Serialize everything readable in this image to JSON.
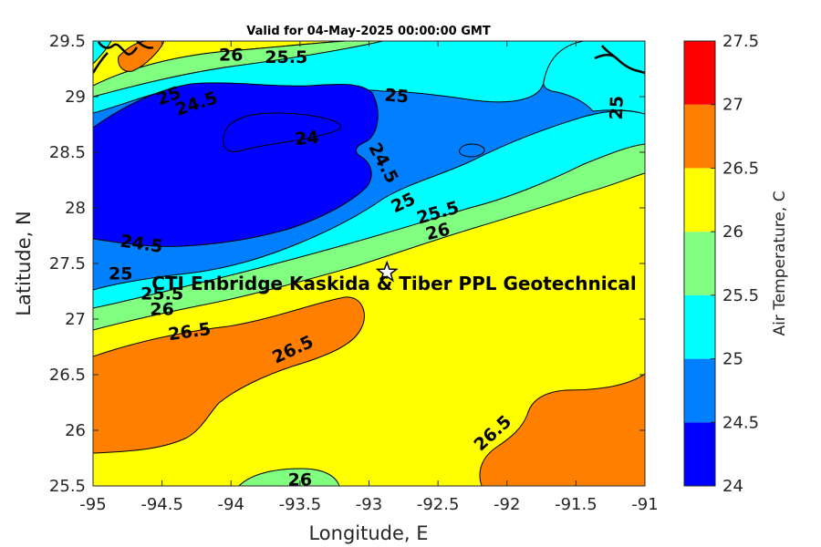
{
  "chart_data": {
    "type": "filled-contour",
    "title": "Valid for 04-May-2025 00:00:00 GMT",
    "xlabel": "Longitude, E",
    "ylabel": "Latitude, N",
    "xlim": [
      -95,
      -91
    ],
    "ylim": [
      25.5,
      29.5
    ],
    "xticks": [
      -95,
      -94.5,
      -94,
      -93.5,
      -93,
      -92.5,
      -92,
      -91.5,
      -91
    ],
    "yticks": [
      25.5,
      26,
      26.5,
      27,
      27.5,
      28,
      28.5,
      29,
      29.5
    ],
    "colorbar": {
      "title": "Air Temperature, C",
      "ticks": [
        24,
        24.5,
        25,
        25.5,
        26,
        26.5,
        27,
        27.5
      ],
      "levels": [
        24,
        24.5,
        25,
        25.5,
        26,
        26.5,
        27,
        27.5
      ],
      "colors": [
        "#0000ff",
        "#0080ff",
        "#00ffff",
        "#80ff80",
        "#ffff00",
        "#ff8000",
        "#ff0000",
        "#800000"
      ]
    },
    "site": {
      "label": "CTI Enbridge  Kaskida & Tiber PPL Geotechnical",
      "lon": -92.87,
      "lat": 27.42
    },
    "contour_labels": [
      {
        "text": "26",
        "lon": -94.0,
        "lat": 29.37,
        "angle": 0
      },
      {
        "text": "25.5",
        "lon": -93.6,
        "lat": 29.35,
        "angle": 0
      },
      {
        "text": "25",
        "lon": -94.45,
        "lat": 29.0,
        "angle": -20
      },
      {
        "text": "24.5",
        "lon": -94.25,
        "lat": 28.93,
        "angle": -18
      },
      {
        "text": "25",
        "lon": -92.8,
        "lat": 29.0,
        "angle": 5
      },
      {
        "text": "25",
        "lon": -91.2,
        "lat": 28.9,
        "angle": -88
      },
      {
        "text": "24",
        "lon": -93.45,
        "lat": 28.62,
        "angle": -5
      },
      {
        "text": "24.5",
        "lon": -92.9,
        "lat": 28.4,
        "angle": 62
      },
      {
        "text": "25",
        "lon": -92.75,
        "lat": 28.04,
        "angle": -25
      },
      {
        "text": "25.5",
        "lon": -92.5,
        "lat": 27.95,
        "angle": -16
      },
      {
        "text": "26",
        "lon": -92.5,
        "lat": 27.78,
        "angle": -14
      },
      {
        "text": "24.5",
        "lon": -94.65,
        "lat": 27.67,
        "angle": 8
      },
      {
        "text": "25",
        "lon": -94.8,
        "lat": 27.4,
        "angle": 0
      },
      {
        "text": "25.5",
        "lon": -94.5,
        "lat": 27.22,
        "angle": 0
      },
      {
        "text": "26",
        "lon": -94.5,
        "lat": 27.08,
        "angle": 0
      },
      {
        "text": "26.5",
        "lon": -94.3,
        "lat": 26.88,
        "angle": -8
      },
      {
        "text": "26.5",
        "lon": -93.55,
        "lat": 26.72,
        "angle": -25
      },
      {
        "text": "26.5",
        "lon": -92.1,
        "lat": 25.97,
        "angle": -42
      },
      {
        "text": "26",
        "lon": -93.5,
        "lat": 25.55,
        "angle": 0
      }
    ]
  }
}
